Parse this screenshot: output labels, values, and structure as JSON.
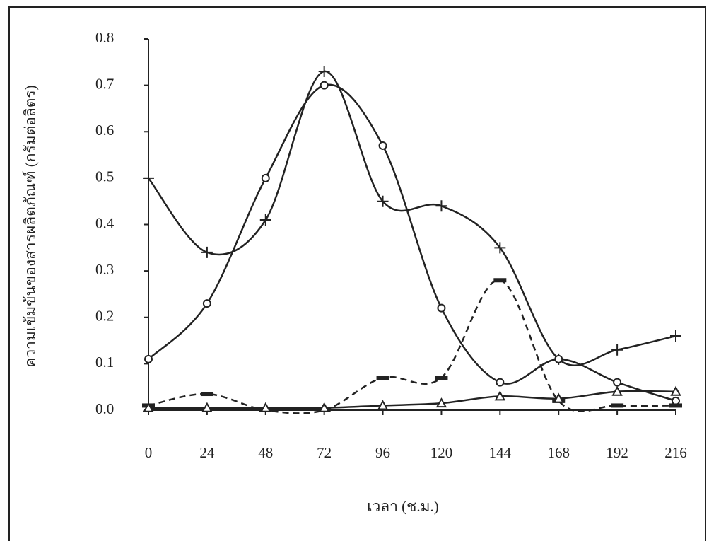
{
  "chart_data": {
    "type": "line",
    "x_label": "เวลา (ช.ม.)",
    "y_label": "ความเข้มข้นของสารผลิตภัณฑ์ (กรัมต่อลิตร)",
    "x": [
      0,
      24,
      48,
      72,
      96,
      120,
      144,
      168,
      192,
      216
    ],
    "xlim": [
      0,
      216
    ],
    "xticks": [
      0,
      24,
      48,
      72,
      96,
      120,
      144,
      168,
      192,
      216
    ],
    "ylim": [
      0,
      0.8
    ],
    "yticks": [
      {
        "value": 0,
        "label": "0.0"
      },
      0.1,
      0.2,
      0.3,
      0.4,
      0.5,
      0.6,
      0.7,
      0.8
    ],
    "grid": false,
    "series": [
      {
        "color": "#222222",
        "marker": "plus",
        "dash": false,
        "values": [
          0.5,
          0.34,
          0.41,
          0.73,
          0.45,
          0.44,
          0.35,
          0.11,
          0.13,
          0.16
        ]
      },
      {
        "color": "#222222",
        "marker": "circle",
        "dash": false,
        "values": [
          0.11,
          0.23,
          0.5,
          0.7,
          0.57,
          0.22,
          0.06,
          0.11,
          0.06,
          0.02
        ]
      },
      {
        "color": "#222222",
        "marker": "bar",
        "dash": true,
        "values": [
          0.01,
          0.035,
          0.0,
          0.0,
          0.07,
          0.07,
          0.28,
          0.02,
          0.01,
          0.01
        ]
      },
      {
        "color": "#222222",
        "marker": "triangle",
        "dash": false,
        "values": [
          0.005,
          0.005,
          0.005,
          0.005,
          0.01,
          0.015,
          0.03,
          0.025,
          0.04,
          0.04
        ]
      }
    ]
  }
}
